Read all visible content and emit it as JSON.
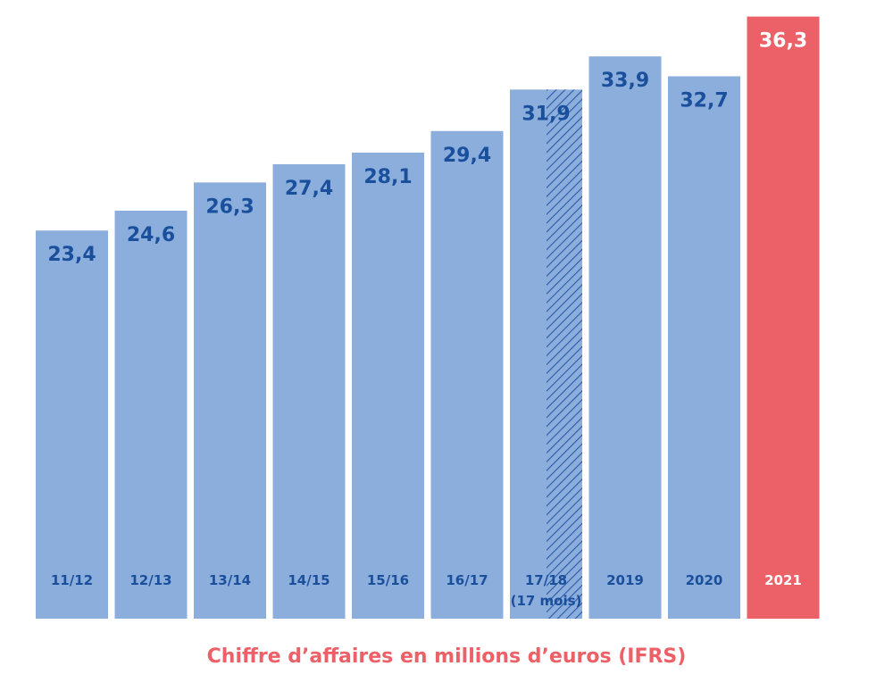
{
  "chart_data": {
    "type": "bar",
    "title": "Chiffre d’affaires en millions d’euros (IFRS)",
    "categories": [
      "11/12",
      "12/13",
      "13/14",
      "14/15",
      "15/16",
      "16/17",
      "17/18",
      "2019",
      "2020",
      "2021"
    ],
    "category_sublabels": [
      "",
      "",
      "",
      "",
      "",
      "",
      "(17 mois)",
      "",
      "",
      ""
    ],
    "values": [
      23.4,
      24.6,
      26.3,
      27.4,
      28.1,
      29.4,
      31.9,
      33.9,
      32.7,
      36.3
    ],
    "value_labels": [
      "23,4",
      "24,6",
      "26,3",
      "27,4",
      "28,1",
      "29,4",
      "31,9",
      "33,9",
      "32,7",
      "36,3"
    ],
    "highlighted_index": 9,
    "hatched_index": 6,
    "ylim": [
      0,
      37.3
    ],
    "grid": false,
    "colors": {
      "bar": "#8caedd",
      "highlight_bar": "#ec6068",
      "text": "#1a4f9c",
      "highlight_text": "#ffffff",
      "title": "#ec6068",
      "hatch": "#2a5aa6"
    }
  }
}
